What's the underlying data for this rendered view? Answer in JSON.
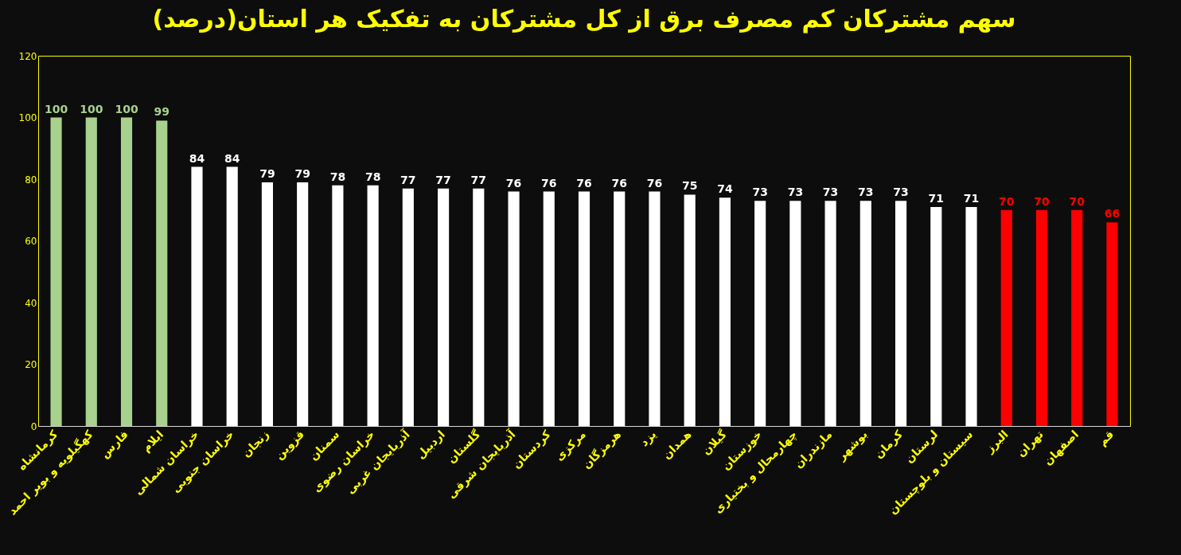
{
  "chart_data": {
    "type": "bar",
    "title": "سهم مشترکان کم مصرف برق از کل مشترکان به تفکیک هر استان(درصد)",
    "categories": [
      "کرمانشاه",
      "کهگیلویه و بویر احمد",
      "فارس",
      "ایلام",
      "خراسان شمالی",
      "خراسان جنوبی",
      "زنجان",
      "قزوین",
      "سمنان",
      "خراسان رضوی",
      "آذربایجان غربی",
      "اردبیل",
      "گلستان",
      "آذربایجان شرقی",
      "کردستان",
      "مرکزی",
      "هرمزگان",
      "یزد",
      "همدان",
      "گیلان",
      "خوزستان",
      "چهارمحال و بختیاری",
      "مازندران",
      "بوشهر",
      "کرمان",
      "لرستان",
      "سیستان و بلوچستان",
      "البرز",
      "تهران",
      "اصفهان",
      "قم"
    ],
    "values": [
      100,
      100,
      100,
      99,
      84,
      84,
      79,
      79,
      78,
      78,
      77,
      77,
      77,
      76,
      76,
      76,
      76,
      76,
      75,
      74,
      73,
      73,
      73,
      73,
      73,
      71,
      71,
      70,
      70,
      70,
      66
    ],
    "colors": [
      "#a9d18e",
      "#a9d18e",
      "#a9d18e",
      "#a9d18e",
      "#ffffff",
      "#ffffff",
      "#ffffff",
      "#ffffff",
      "#ffffff",
      "#ffffff",
      "#ffffff",
      "#ffffff",
      "#ffffff",
      "#ffffff",
      "#ffffff",
      "#ffffff",
      "#ffffff",
      "#ffffff",
      "#ffffff",
      "#ffffff",
      "#ffffff",
      "#ffffff",
      "#ffffff",
      "#ffffff",
      "#ffffff",
      "#ffffff",
      "#ffffff",
      "#ff0000",
      "#ff0000",
      "#ff0000",
      "#ff0000"
    ],
    "ylim": [
      0,
      120
    ],
    "yticks": [
      0,
      20,
      40,
      60,
      80,
      100,
      120
    ],
    "data_labels": true
  }
}
